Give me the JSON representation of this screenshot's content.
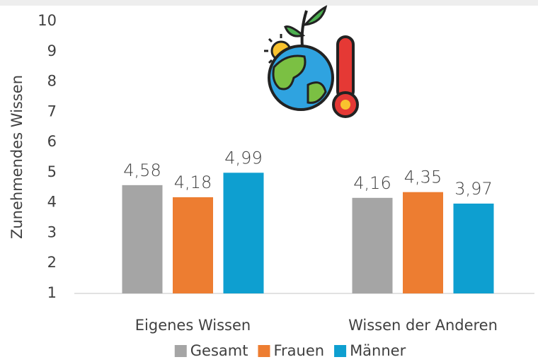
{
  "chart_data": {
    "type": "bar",
    "y_label": "Zunehmendes Wissen",
    "categories": [
      "Eigenes Wissen",
      "Wissen der Anderen"
    ],
    "series": [
      {
        "name": "Gesamt",
        "color": "#a5a5a5",
        "values": [
          4.58,
          4.16
        ],
        "value_labels": [
          "4,58",
          "4,16"
        ]
      },
      {
        "name": "Frauen",
        "color": "#ed7d31",
        "values": [
          4.18,
          4.35
        ],
        "value_labels": [
          "4,18",
          "4,35"
        ]
      },
      {
        "name": "Männer",
        "color": "#0e9fd0",
        "values": [
          4.99,
          3.97
        ],
        "value_labels": [
          "4,99",
          "3,97"
        ]
      }
    ],
    "ylim": [
      1,
      10
    ],
    "yticks": [
      1,
      2,
      3,
      4,
      5,
      6,
      7,
      8,
      9,
      10
    ],
    "grid": false
  }
}
